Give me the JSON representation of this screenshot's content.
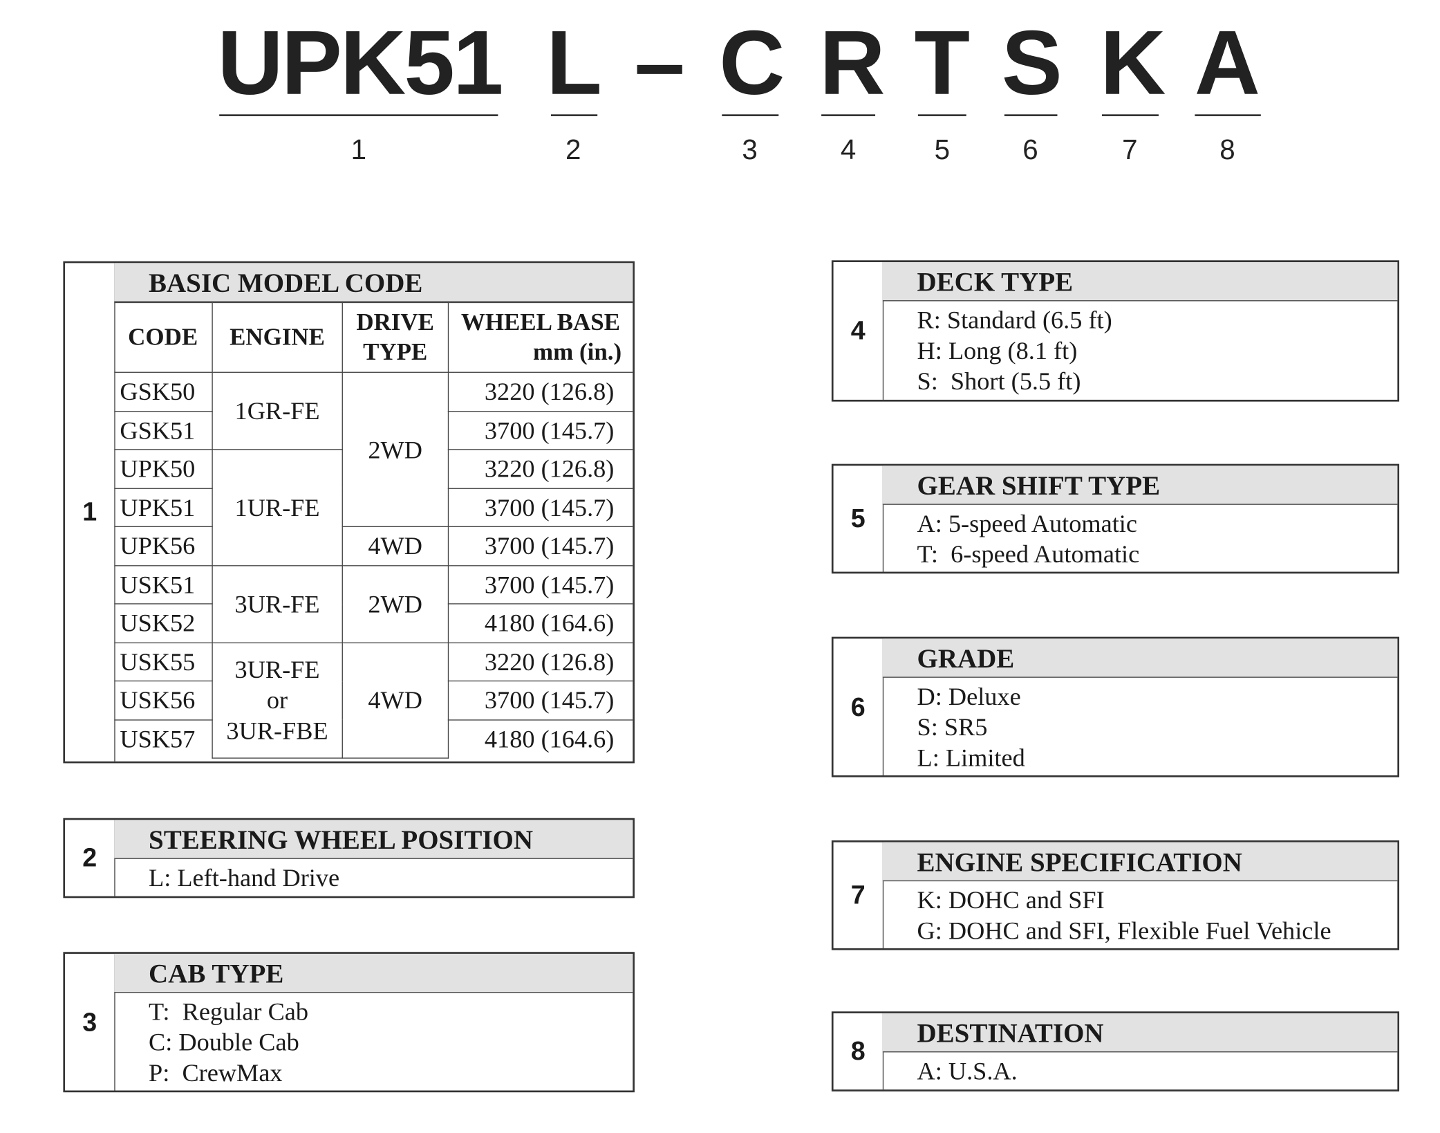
{
  "title_code": {
    "chars": [
      "UPK51",
      "L",
      "–",
      "C",
      "R",
      "T",
      "S",
      "K",
      "A"
    ],
    "positions": [
      "1",
      "2",
      "3",
      "4",
      "5",
      "6",
      "7",
      "8"
    ]
  },
  "section1": {
    "number": "1",
    "title": "BASIC MODEL CODE",
    "headers": {
      "code": "CODE",
      "engine": "ENGINE",
      "drive": "DRIVE TYPE",
      "wheel_base": "WHEEL BASE",
      "wheel_base_unit": "mm (in.)"
    },
    "rows": [
      {
        "code": "GSK50",
        "wheel_base": "3220 (126.8)"
      },
      {
        "code": "GSK51",
        "wheel_base": "3700 (145.7)"
      },
      {
        "code": "UPK50",
        "wheel_base": "3220 (126.8)"
      },
      {
        "code": "UPK51",
        "wheel_base": "3700 (145.7)"
      },
      {
        "code": "UPK56",
        "wheel_base": "3700 (145.7)"
      },
      {
        "code": "USK51",
        "wheel_base": "3700 (145.7)"
      },
      {
        "code": "USK52",
        "wheel_base": "4180 (164.6)"
      },
      {
        "code": "USK55",
        "wheel_base": "3220 (126.8)"
      },
      {
        "code": "USK56",
        "wheel_base": "3700 (145.7)"
      },
      {
        "code": "USK57",
        "wheel_base": "4180 (164.6)"
      }
    ],
    "engines": [
      "1GR-FE",
      "1UR-FE",
      "3UR-FE",
      "3UR-FE",
      "or",
      "3UR-FBE"
    ],
    "drives": [
      "2WD",
      "4WD",
      "2WD",
      "4WD"
    ]
  },
  "section2": {
    "number": "2",
    "title": "STEERING WHEEL POSITION",
    "items": [
      "L: Left-hand Drive"
    ]
  },
  "section3": {
    "number": "3",
    "title": "CAB TYPE",
    "items": [
      "T:  Regular Cab",
      "C: Double Cab",
      "P:  CrewMax"
    ]
  },
  "section4": {
    "number": "4",
    "title": "DECK TYPE",
    "items": [
      "R: Standard (6.5 ft)",
      "H: Long (8.1 ft)",
      "S:  Short (5.5 ft)"
    ]
  },
  "section5": {
    "number": "5",
    "title": "GEAR SHIFT TYPE",
    "items": [
      "A: 5-speed Automatic",
      "T:  6-speed Automatic"
    ]
  },
  "section6": {
    "number": "6",
    "title": "GRADE",
    "items": [
      "D: Deluxe",
      "S: SR5",
      "L: Limited"
    ]
  },
  "section7": {
    "number": "7",
    "title": "ENGINE SPECIFICATION",
    "items": [
      "K: DOHC and SFI",
      "G: DOHC and SFI, Flexible Fuel Vehicle"
    ]
  },
  "section8": {
    "number": "8",
    "title": "DESTINATION",
    "items": [
      "A: U.S.A."
    ]
  }
}
